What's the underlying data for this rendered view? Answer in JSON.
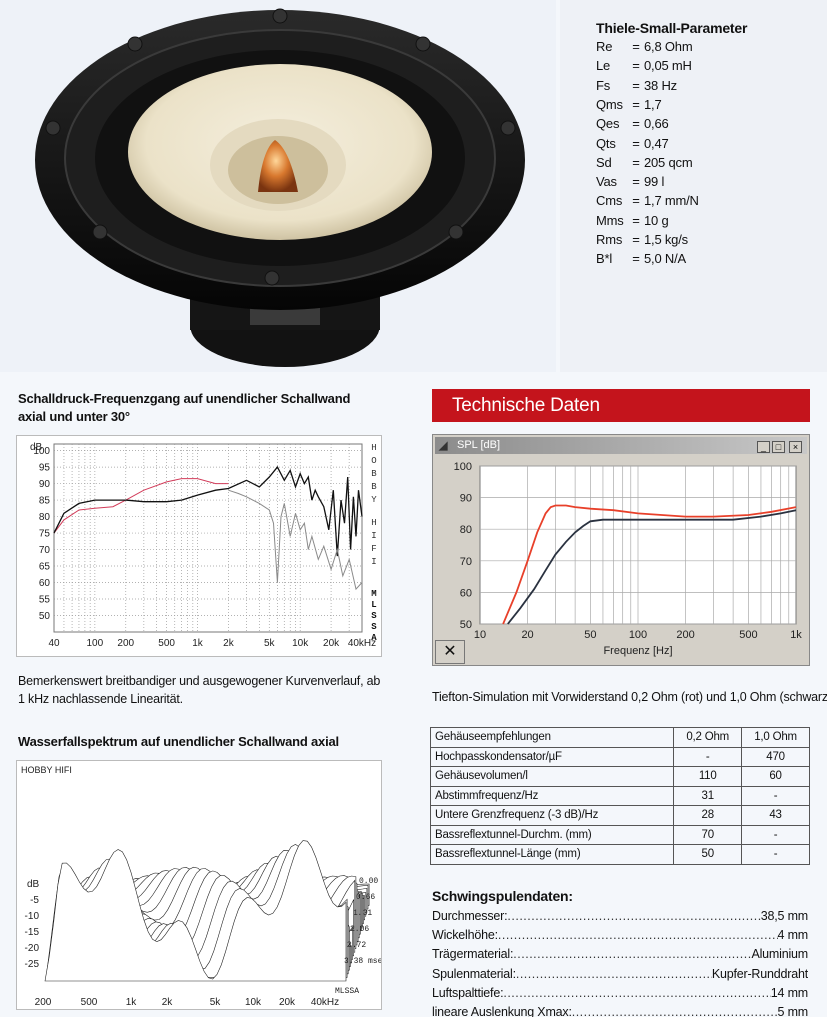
{
  "thiele_small": {
    "title": "Thiele-Small-Parameter",
    "rows": [
      {
        "k": "Re",
        "v": "6,8 Ohm"
      },
      {
        "k": "Le",
        "v": "0,05 mH"
      },
      {
        "k": "Fs",
        "v": "38 Hz"
      },
      {
        "k": "Qms",
        "v": "1,7"
      },
      {
        "k": "Qes",
        "v": "0,66"
      },
      {
        "k": "Qts",
        "v": "0,47"
      },
      {
        "k": "Sd",
        "v": "205 qcm"
      },
      {
        "k": "Vas",
        "v": "99 l"
      },
      {
        "k": "Cms",
        "v": "1,7 mm/N"
      },
      {
        "k": "Mms",
        "v": "10 g"
      },
      {
        "k": "Rms",
        "v": "1,5 kg/s"
      },
      {
        "k": "B*l",
        "v": "5,0 N/A"
      }
    ]
  },
  "spl_section": {
    "title": "Schalldruck-Frequenzgang auf unendlicher Schallwand axial und unter 30°",
    "comment": "Bemerkenswert breitbandiger und ausgewogener Kurvenverlauf, ab 1 kHz nachlassende Linearität.",
    "side_label_1": "HOBBY HIFI",
    "side_label_2": "MLSSA"
  },
  "waterfall": {
    "title": "Wasserfallspektrum auf unendlicher Schallwand axial",
    "corner_label": "HOBBY HIFI",
    "y_unit": "dB",
    "y_ticks": [
      "-5",
      "-10",
      "-15",
      "-20",
      "-25"
    ],
    "time_labels": [
      "0.00",
      "0.66",
      "1.31",
      "2.06",
      "2.72",
      "3.38 msec"
    ],
    "x_ticks": [
      "200",
      "500",
      "1k",
      "2k",
      "5k",
      "10k",
      "20k",
      "40kHz"
    ],
    "mlssa": "MLSSA"
  },
  "technische_daten": {
    "banner": "Technische Daten",
    "window_title": "SPL [dB]",
    "xlabel": "Frequenz [Hz]",
    "caption": "Tiefton-Simulation mit Vorwiderstand 0,2 Ohm (rot) und 1,0 Ohm (schwarz)"
  },
  "enclosure_table": {
    "header": [
      "Gehäuseempfehlungen",
      "0,2 Ohm",
      "1,0 Ohm"
    ],
    "rows": [
      [
        "Hochpasskondensator/µF",
        "-",
        "470"
      ],
      [
        "Gehäusevolumen/l",
        "110",
        "60"
      ],
      [
        "Abstimmfrequenz/Hz",
        "31",
        "-"
      ],
      [
        "Untere Grenzfrequenz (-3 dB)/Hz",
        "28",
        "43"
      ],
      [
        "Bassreflextunnel-Durchm. (mm)",
        "70",
        "-"
      ],
      [
        "Bassreflextunnel-Länge (mm)",
        "50",
        "-"
      ]
    ]
  },
  "voice_coil": {
    "title": "Schwingspulendaten:",
    "rows": [
      {
        "k": "Durchmesser:",
        "v": "38,5 mm"
      },
      {
        "k": "Wickelhöhe:",
        "v": "4 mm"
      },
      {
        "k": "Trägermaterial:",
        "v": "Aluminium"
      },
      {
        "k": "Spulenmaterial:",
        "v": "Kupfer-Runddraht"
      },
      {
        "k": "Luftspalttiefe:",
        "v": "14 mm"
      },
      {
        "k": "lineare Auslenkung Xmax:",
        "v": "5 mm"
      }
    ]
  },
  "chart_data": [
    {
      "type": "line",
      "title": "",
      "ylabel": "dB",
      "xlabel": "",
      "x_scale": "log",
      "xlim": [
        40,
        40000
      ],
      "ylim": [
        45,
        102
      ],
      "y_ticks": [
        50,
        55,
        60,
        65,
        70,
        75,
        80,
        85,
        90,
        95,
        100
      ],
      "x_tick_labels": [
        "40",
        "100",
        "200",
        "500",
        "1k",
        "2k",
        "5k",
        "10k",
        "20k",
        "40kHz"
      ],
      "x_tick_values": [
        40,
        100,
        200,
        500,
        1000,
        2000,
        5000,
        10000,
        20000,
        40000
      ],
      "series": [
        {
          "color": "#d23c5a",
          "x": [
            40,
            50,
            70,
            100,
            150,
            200,
            300,
            500,
            700,
            1000,
            1500,
            2000
          ],
          "y": [
            75,
            79,
            82,
            82.5,
            83,
            85,
            88,
            90.5,
            91.5,
            91.5,
            90,
            90
          ]
        },
        {
          "color": "#111111",
          "x": [
            40,
            50,
            70,
            100,
            150,
            200,
            300,
            500,
            700,
            1000,
            1500,
            2000,
            3000,
            4000,
            5000,
            6000,
            7000,
            8000,
            9000,
            10000,
            11000,
            12000,
            13000,
            14000,
            15000,
            17000,
            19000,
            21000,
            23000,
            25000,
            27000,
            29000,
            31000,
            33000,
            35000,
            37000,
            40000
          ],
          "y": [
            75,
            81,
            84,
            85,
            85,
            85,
            84.5,
            84.5,
            85,
            86.5,
            88,
            88.5,
            91,
            89,
            92,
            95,
            91,
            94,
            89,
            93,
            90,
            92,
            85,
            88,
            86,
            83,
            76,
            88,
            68,
            85,
            78,
            92,
            70,
            86,
            74,
            88,
            80
          ]
        },
        {
          "color": "#8a8a8a",
          "x": [
            2000,
            2500,
            3000,
            4000,
            5000,
            5500,
            6000,
            6500,
            7000,
            8000,
            9000,
            10000,
            11000,
            12000,
            13000,
            15000,
            17000,
            20000,
            23000,
            26000,
            30000,
            35000,
            40000
          ],
          "y": [
            88,
            87,
            86,
            84,
            82,
            78,
            60,
            80,
            84,
            74,
            81,
            76,
            78,
            70,
            74,
            67,
            71,
            64,
            70,
            62,
            67,
            58,
            60
          ]
        }
      ]
    },
    {
      "type": "line",
      "title": "SPL [dB]",
      "xlabel": "Frequenz [Hz]",
      "ylabel": "",
      "x_scale": "log",
      "xlim": [
        10,
        1000
      ],
      "ylim": [
        50,
        100
      ],
      "y_ticks": [
        50,
        60,
        70,
        80,
        90,
        100
      ],
      "x_tick_labels": [
        "10",
        "20",
        "50",
        "100",
        "200",
        "500",
        "1k"
      ],
      "x_tick_values": [
        10,
        20,
        50,
        100,
        200,
        500,
        1000
      ],
      "series": [
        {
          "color": "#e8402a",
          "x": [
            14,
            17,
            20,
            23,
            26,
            28,
            30,
            35,
            40,
            50,
            70,
            100,
            200,
            300,
            500,
            700,
            1000
          ],
          "y": [
            50,
            60,
            70,
            79,
            85,
            87,
            87.5,
            87.5,
            87,
            86.5,
            86,
            85,
            84,
            84,
            84.5,
            85.5,
            87
          ]
        },
        {
          "color": "#2a3240",
          "x": [
            15,
            18,
            22,
            26,
            30,
            35,
            40,
            45,
            50,
            60,
            70,
            100,
            200,
            400,
            600,
            800,
            1000
          ],
          "y": [
            50,
            55,
            61,
            67,
            72,
            76,
            79,
            81,
            82.5,
            83,
            83,
            83,
            83,
            83,
            84,
            85,
            86
          ]
        }
      ]
    }
  ]
}
